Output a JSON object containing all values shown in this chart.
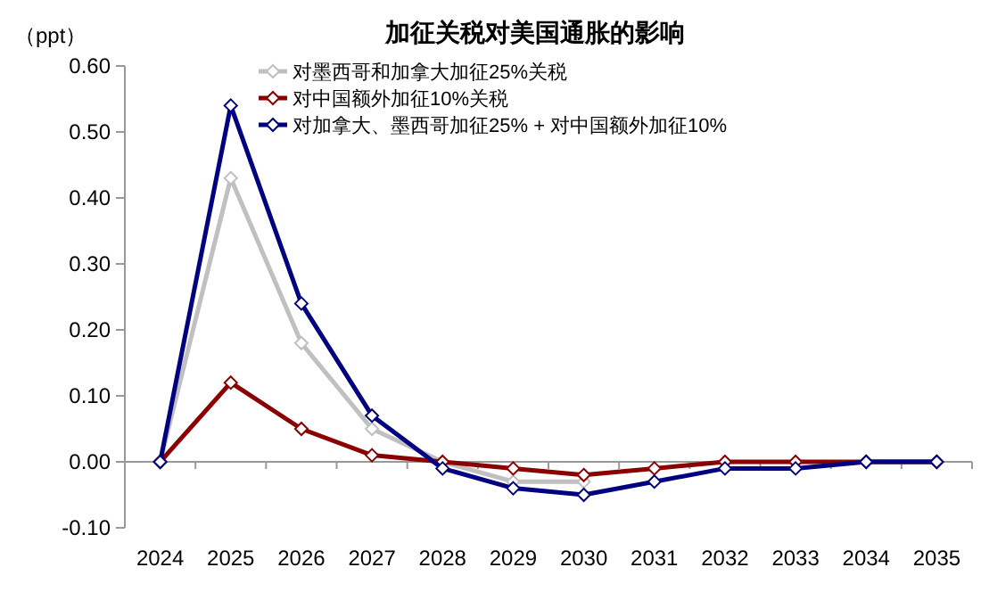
{
  "chart_data": {
    "type": "line",
    "title": "加征关税对美国通胀的影响",
    "ylabel": "（ppt）",
    "categories": [
      "2024",
      "2025",
      "2026",
      "2027",
      "2028",
      "2029",
      "2030",
      "2031",
      "2032",
      "2033",
      "2034",
      "2035"
    ],
    "series": [
      {
        "name": "对墨西哥和加拿大加征25%关税",
        "color": "#c0c0c0",
        "values": [
          0,
          0.43,
          0.18,
          0.05,
          0,
          -0.03,
          -0.03,
          null,
          null,
          null,
          0,
          0
        ]
      },
      {
        "name": "对中国额外加征10%关税",
        "color": "#8b0000",
        "values": [
          0,
          0.12,
          0.05,
          0.01,
          0,
          -0.01,
          -0.02,
          -0.01,
          0,
          0,
          0,
          0
        ]
      },
      {
        "name": "对加拿大、墨西哥加征25% + 对中国额外加征10%",
        "color": "#000080",
        "values": [
          0,
          0.54,
          0.24,
          0.07,
          -0.01,
          -0.04,
          -0.05,
          -0.03,
          -0.01,
          -0.01,
          0,
          0
        ]
      }
    ],
    "ylim": [
      -0.1,
      0.6
    ],
    "yticks": [
      {
        "value": -0.1,
        "label": "-0.10"
      },
      {
        "value": 0,
        "label": "0.00"
      },
      {
        "value": 0.1,
        "label": "0.10"
      },
      {
        "value": 0.2,
        "label": "0.20"
      },
      {
        "value": 0.3,
        "label": "0.30"
      },
      {
        "value": 0.4,
        "label": "0.40"
      },
      {
        "value": 0.5,
        "label": "0.50"
      },
      {
        "value": 0.6,
        "label": "0.60"
      }
    ],
    "marker": "diamond",
    "legend": "top"
  }
}
